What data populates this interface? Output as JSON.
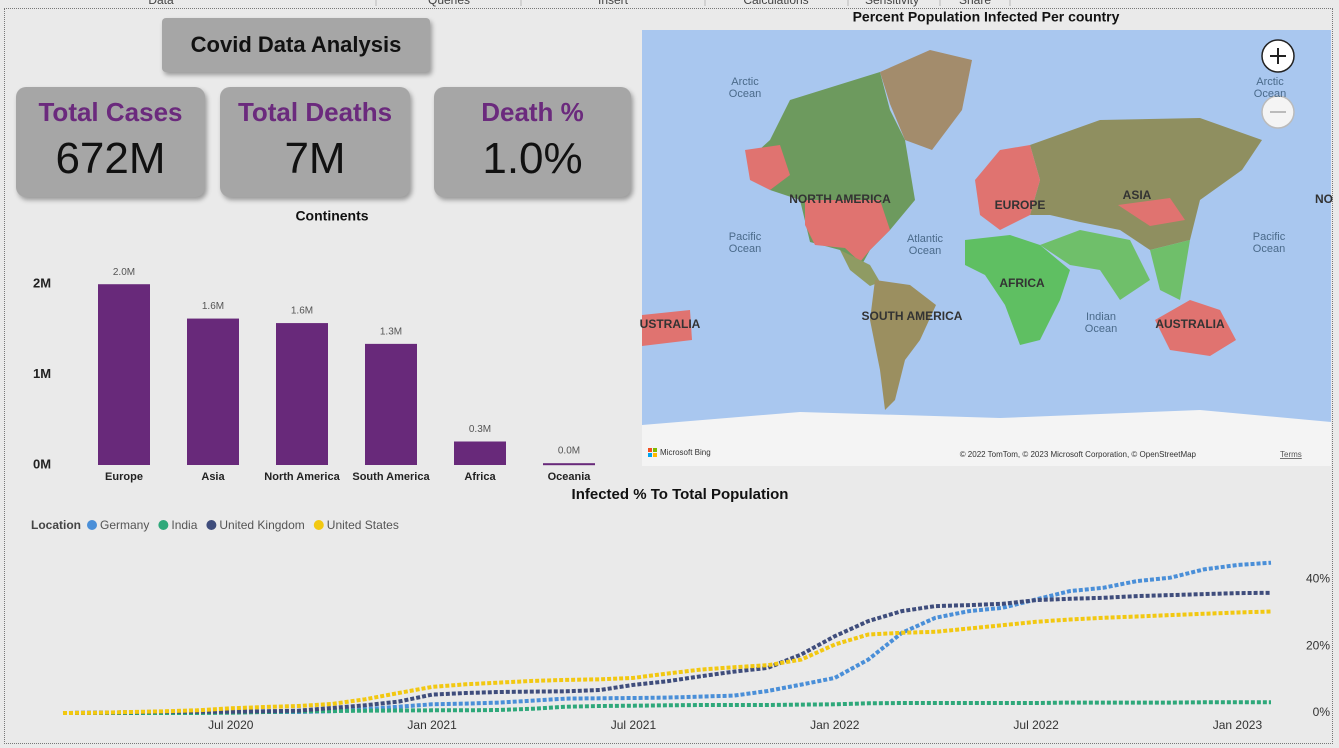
{
  "menu": [
    "Data",
    "Queries",
    "Insert",
    "Calculations",
    "Sensitivity",
    "Share"
  ],
  "header": {
    "title": "Covid Data Analysis"
  },
  "kpis": [
    {
      "label": "Total Cases",
      "value": "672M"
    },
    {
      "label": "Total Deaths",
      "value": "7M"
    },
    {
      "label": "Death %",
      "value": "1.0%"
    }
  ],
  "map": {
    "title": "Percent Population Infected Per country",
    "labels": [
      "Arctic Ocean",
      "Arctic Ocean",
      "NORTH AMERICA",
      "Pacific Ocean",
      "Atlantic Ocean",
      "EUROPE",
      "ASIA",
      "AFRICA",
      "SOUTH AMERICA",
      "USTRALIA",
      "Indian Ocean",
      "AUSTRALIA",
      "Pacific Ocean",
      "NO"
    ],
    "brand": "Microsoft Bing",
    "credit": "© 2022 TomTom, © 2023 Microsoft Corporation, © OpenStreetMap",
    "terms": "Terms"
  },
  "chart_data": [
    {
      "type": "bar",
      "title": "Continents",
      "categories": [
        "Europe",
        "Asia",
        "North America",
        "South America",
        "Africa",
        "Oceania"
      ],
      "values": [
        2.0,
        1.62,
        1.57,
        1.34,
        0.26,
        0.02
      ],
      "value_labels": [
        "2.0M",
        "1.6M",
        "1.6M",
        "1.3M",
        "0.3M",
        "0.0M"
      ],
      "color": "#68297a",
      "ylim": [
        0,
        2.29
      ],
      "yticks": [
        {
          "value": 0,
          "label": "0M"
        },
        {
          "value": 1,
          "label": "1M"
        },
        {
          "value": 2,
          "label": "2M"
        }
      ]
    },
    {
      "type": "line",
      "title": "Infected % To Total Population",
      "legend_title": "Location",
      "x": [
        "2020-02",
        "2020-03",
        "2020-04",
        "2020-05",
        "2020-06",
        "2020-07",
        "2020-08",
        "2020-09",
        "2020-10",
        "2020-11",
        "2020-12",
        "2021-01",
        "2021-02",
        "2021-03",
        "2021-04",
        "2021-05",
        "2021-06",
        "2021-07",
        "2021-08",
        "2021-09",
        "2021-10",
        "2021-11",
        "2021-12",
        "2022-01",
        "2022-02",
        "2022-03",
        "2022-04",
        "2022-05",
        "2022-06",
        "2022-07",
        "2022-08",
        "2022-09",
        "2022-10",
        "2022-11",
        "2022-12",
        "2023-01",
        "2023-02"
      ],
      "xticks": [
        {
          "value": "2020-07",
          "label": "Jul 2020"
        },
        {
          "value": "2021-01",
          "label": "Jan 2021"
        },
        {
          "value": "2021-07",
          "label": "Jul 2021"
        },
        {
          "value": "2022-01",
          "label": "Jan 2022"
        },
        {
          "value": "2022-07",
          "label": "Jul 2022"
        },
        {
          "value": "2023-01",
          "label": "Jan 2023"
        }
      ],
      "ylim": [
        0,
        50
      ],
      "yticks": [
        {
          "value": 0,
          "label": "0%"
        },
        {
          "value": 20,
          "label": "20%"
        },
        {
          "value": 40,
          "label": "40%"
        }
      ],
      "series": [
        {
          "name": "Germany",
          "color": "#4a8fd8",
          "values": [
            0,
            0.1,
            0.2,
            0.2,
            0.2,
            0.3,
            0.3,
            0.3,
            0.5,
            1.1,
            1.9,
            2.6,
            2.8,
            3.1,
            3.7,
            4.3,
            4.4,
            4.5,
            4.6,
            4.9,
            5.2,
            6.6,
            8.5,
            10.5,
            16,
            24,
            28.5,
            30.5,
            31.5,
            34,
            36.5,
            37.5,
            39.5,
            40.5,
            43,
            44.3,
            45
          ]
        },
        {
          "name": "India",
          "color": "#2ea87a",
          "values": [
            0,
            0,
            0,
            0,
            0,
            0.1,
            0.3,
            0.5,
            0.6,
            0.7,
            0.75,
            0.8,
            0.8,
            0.9,
            1.3,
            1.9,
            2.1,
            2.2,
            2.3,
            2.4,
            2.4,
            2.4,
            2.5,
            2.6,
            2.9,
            3,
            3,
            3,
            3,
            3,
            3.1,
            3.1,
            3.1,
            3.1,
            3.2,
            3.2,
            3.2
          ]
        },
        {
          "name": "United Kingdom",
          "color": "#3f4d7c",
          "values": [
            0,
            0.05,
            0.2,
            0.4,
            0.4,
            0.4,
            0.5,
            0.7,
            1.5,
            2.3,
            3.4,
            5.5,
            6,
            6.3,
            6.4,
            6.5,
            6.9,
            8.4,
            9.5,
            11,
            12.4,
            13.5,
            17.5,
            23,
            27.5,
            30.5,
            32,
            32.3,
            32.7,
            33.8,
            34.2,
            34.5,
            35,
            35.3,
            35.6,
            35.9,
            36
          ]
        },
        {
          "name": "United States",
          "color": "#f2c811",
          "values": [
            0,
            0.05,
            0.3,
            0.5,
            0.8,
            1.4,
            1.8,
            2.1,
            2.7,
            4.1,
            6,
            7.8,
            8.6,
            9.1,
            9.6,
            9.9,
            10.1,
            10.5,
            11.8,
            13,
            13.7,
            14.3,
            16,
            20.5,
            23.5,
            24,
            24.3,
            25.3,
            26.3,
            27.3,
            28,
            28.5,
            28.9,
            29.3,
            29.7,
            30.1,
            30.4
          ]
        }
      ]
    }
  ]
}
